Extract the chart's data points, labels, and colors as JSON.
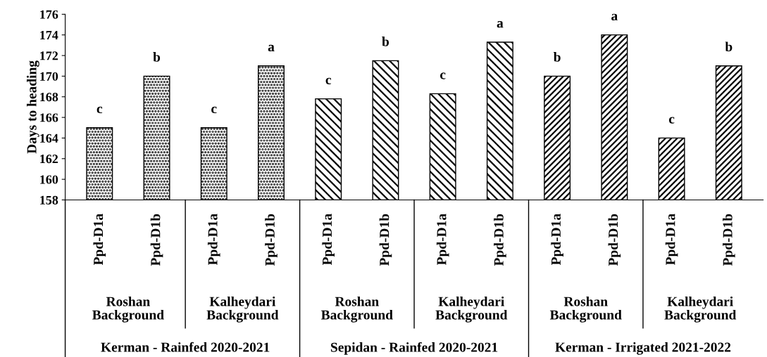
{
  "chart_data": {
    "type": "bar",
    "ylabel": "Days to heading",
    "categories": [
      "Ppd-D1a",
      "Ppd-D1b",
      "Ppd-D1a",
      "Ppd-D1b",
      "Ppd-D1a",
      "Ppd-D1b",
      "Ppd-D1a",
      "Ppd-D1b",
      "Ppd-D1a",
      "Ppd-D1b",
      "Ppd-D1a",
      "Ppd-D1b"
    ],
    "values": [
      165,
      170,
      165,
      171,
      167.8,
      171.5,
      168.3,
      173.3,
      170,
      174,
      164,
      171
    ],
    "value_labels": [
      "c",
      "b",
      "c",
      "a",
      "c",
      "b",
      "c",
      "a",
      "b",
      "a",
      "c",
      "b"
    ],
    "color": "#000000",
    "ylim": [
      158,
      176
    ],
    "yticks": [
      158,
      160,
      162,
      164,
      166,
      168,
      170,
      172,
      174,
      176
    ],
    "grid": false,
    "legend": false,
    "annotations": [
      "Roshan\nBackground",
      "Kalheydari\nBackground",
      "Roshan\nBackground",
      "Kalheydari\nBackground",
      "Roshan\nBackground",
      "Kalheydari\nBackground",
      "Kerman - Rainfed 2020-2021",
      "Sepidan - Rainfed 2020-2021",
      "Kerman - Irrigated 2021-2022"
    ]
  }
}
